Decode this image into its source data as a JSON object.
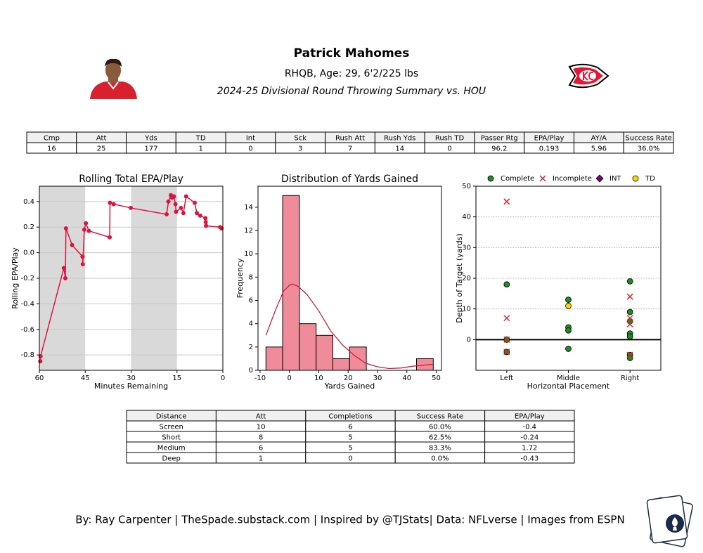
{
  "header": {
    "title": "Patrick Mahomes",
    "subtitle": "RHQB, Age: 29, 6'2/225 lbs",
    "description": "2024-25 Divisional Round Throwing Summary vs. HOU"
  },
  "summary_table": {
    "header": [
      "Cmp",
      "Att",
      "Yds",
      "TD",
      "Int",
      "Sck",
      "Rush Att",
      "Rush Yds",
      "Rush TD",
      "Passer Rtg",
      "EPA/Play",
      "AY/A",
      "Success Rate"
    ],
    "rows": [
      [
        "16",
        "25",
        "177",
        "1",
        "0",
        "3",
        "7",
        "14",
        "0",
        "96.2",
        "0.193",
        "5.96",
        "36.0%"
      ]
    ]
  },
  "chart_data": [
    {
      "type": "line",
      "title": "Rolling Total EPA/Play",
      "xlabel": "Minutes Remaining",
      "ylabel": "Rolling EPA/Play",
      "x": [
        59.7,
        59.6,
        52.0,
        51.5,
        51.3,
        49.3,
        45.9,
        45.8,
        45.3,
        44.8,
        43.8,
        37.0,
        36.9,
        35.7,
        30.1,
        18.4,
        17.8,
        17.0,
        16.6,
        16.0,
        15.5,
        15.3,
        13.7,
        12.9,
        12.0,
        9.2,
        8.5,
        7.4,
        5.7,
        5.6,
        5.5,
        0.9,
        0.4
      ],
      "values": [
        -0.85,
        -0.81,
        -0.12,
        -0.2,
        0.19,
        0.06,
        -0.03,
        -0.09,
        0.18,
        0.23,
        0.17,
        0.12,
        0.39,
        0.38,
        0.35,
        0.3,
        0.4,
        0.45,
        0.43,
        0.44,
        0.38,
        0.32,
        0.35,
        0.31,
        0.44,
        0.39,
        0.31,
        0.29,
        0.27,
        0.24,
        0.21,
        0.2,
        0.19
      ],
      "color": "#dc143c",
      "shaded_spans": [
        [
          60,
          45
        ],
        [
          30,
          15
        ]
      ],
      "shade_color": "#d9d9d9",
      "xlim": [
        60,
        0
      ],
      "xticks": [
        60,
        45,
        30,
        15,
        0
      ],
      "ylim": [
        -0.92,
        0.52
      ],
      "yticks": [
        -0.8,
        -0.6,
        -0.4,
        -0.2,
        {
          "value": 0,
          "label": "0.0"
        },
        0.2,
        0.4
      ],
      "grid": true
    },
    {
      "type": "histogram",
      "title": "Distribution of Yards Gained",
      "xlabel": "Yards Gained",
      "ylabel": "Frequency",
      "bins": [
        -8,
        -2.3,
        3.4,
        9.1,
        14.8,
        20.5,
        26.2,
        31.9,
        37.6,
        43.3,
        49
      ],
      "values": [
        2,
        15,
        4,
        3,
        1,
        2,
        0,
        0,
        0,
        1
      ],
      "color": "#f08c9a",
      "density_curve": {
        "x": [
          -8,
          -5,
          -2,
          0,
          1,
          3,
          6,
          10,
          14,
          18,
          22,
          26,
          30,
          34,
          38,
          42,
          46,
          49
        ],
        "values": [
          3.0,
          5.0,
          6.8,
          7.3,
          7.4,
          7.2,
          6.5,
          5.1,
          3.4,
          2.2,
          1.3,
          0.6,
          0.3,
          0.15,
          0.2,
          0.35,
          0.45,
          0.5
        ],
        "color": "#c8203c"
      },
      "xlim": [
        -10.7,
        51.8
      ],
      "xticks": [
        -10,
        0,
        10,
        20,
        30,
        40,
        50
      ],
      "ylim": [
        0,
        15.8
      ],
      "yticks": [
        0,
        2,
        4,
        6,
        8,
        10,
        12,
        14
      ],
      "grid": false
    },
    {
      "type": "scatter",
      "xlabel": "Horizontal Placement",
      "ylabel": "Depth of Target (yards)",
      "categories": [
        "Left",
        "Middle",
        "Right"
      ],
      "series": [
        {
          "name": "Complete",
          "color": "#1e8c1e",
          "marker": "circle",
          "x": [
            "Left",
            "Left",
            "Left",
            "Middle",
            "Middle",
            "Middle",
            "Middle",
            "Right",
            "Right",
            "Right",
            "Right",
            "Right",
            "Right",
            "Right"
          ],
          "values": [
            18,
            0,
            -4,
            13,
            4,
            3,
            -3,
            19,
            9,
            6,
            2,
            1,
            -5,
            -6
          ]
        },
        {
          "name": "Incomplete",
          "color": "#d62728",
          "marker": "x",
          "x": [
            "Left",
            "Left",
            "Left",
            "Left",
            "Right",
            "Right",
            "Right",
            "Right"
          ],
          "values": [
            45,
            7,
            0,
            -4,
            14,
            7,
            5,
            -5
          ]
        },
        {
          "name": "INT",
          "color": "#800080",
          "marker": "diamond",
          "x": [],
          "values": []
        },
        {
          "name": "TD",
          "color": "#ffd700",
          "marker": "circle",
          "x": [
            "Middle"
          ],
          "values": [
            11
          ]
        }
      ],
      "legend": "top",
      "ylim": [
        -10,
        50
      ],
      "yticks": [
        0,
        10,
        20,
        30,
        40,
        50
      ],
      "grid": true
    }
  ],
  "distance_table": {
    "header": [
      "Distance",
      "Att",
      "Completions",
      "Success Rate",
      "EPA/Play"
    ],
    "rows": [
      [
        "Screen",
        "10",
        "6",
        "60.0%",
        "-0.4"
      ],
      [
        "Short",
        "8",
        "5",
        "62.5%",
        "-0.24"
      ],
      [
        "Medium",
        "6",
        "5",
        "83.3%",
        "1.72"
      ],
      [
        "Deep",
        "1",
        "0",
        "0.0%",
        "-0.43"
      ]
    ]
  },
  "footer": "By: Ray Carpenter | TheSpade.substack.com | Inspired by @TJStats| Data: NFLverse | Images from ESPN"
}
